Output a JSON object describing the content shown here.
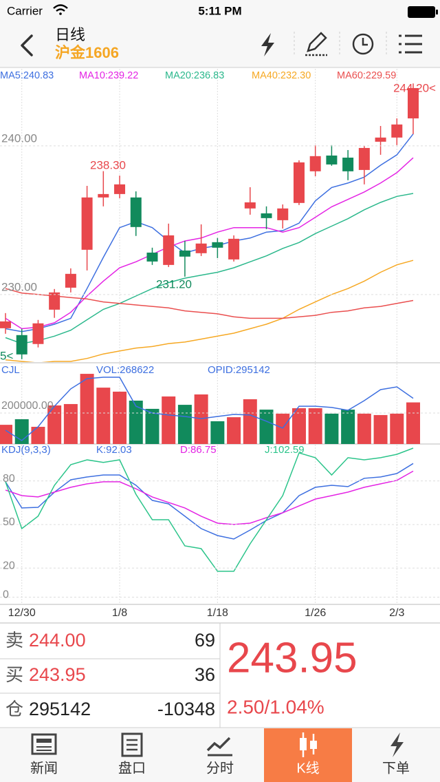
{
  "status_bar": {
    "carrier": "Carrier",
    "time": "5:11 PM"
  },
  "header": {
    "title": "日线",
    "subtitle": "沪金1606"
  },
  "chart_data": [
    {
      "type": "candlestick",
      "categories": [
        null,
        "12/30",
        null,
        null,
        null,
        null,
        null,
        "1/8",
        null,
        null,
        null,
        null,
        null,
        "1/18",
        null,
        null,
        null,
        null,
        null,
        "1/26",
        null,
        null,
        null,
        null,
        "2/3",
        null
      ],
      "open": [
        227.73,
        227.27,
        226.67,
        228.98,
        230.46,
        233.01,
        236.53,
        236.76,
        236.53,
        232.82,
        231.99,
        232.96,
        232.78,
        233.52,
        232.36,
        235.79,
        235.46,
        235.0,
        236.16,
        238.29,
        239.35,
        239.21,
        238.38,
        240.28,
        240.56,
        241.85
      ],
      "close": [
        228.19,
        225.97,
        228.06,
        230.14,
        231.39,
        236.53,
        236.76,
        237.41,
        234.54,
        232.22,
        233.98,
        232.55,
        233.43,
        233.15,
        233.75,
        236.2,
        235.14,
        235.79,
        238.89,
        239.31,
        238.75,
        238.29,
        239.86,
        240.56,
        241.44,
        243.89
      ],
      "high": [
        228.75,
        227.69,
        228.29,
        230.37,
        231.76,
        237.31,
        238.3,
        238.0,
        236.94,
        233.15,
        234.77,
        233.61,
        234.72,
        233.8,
        233.98,
        237.22,
        235.93,
        236.06,
        239.03,
        240.05,
        240.05,
        239.72,
        240.0,
        241.34,
        241.85,
        244.2
      ],
      "low": [
        227.36,
        225.65,
        226.44,
        228.43,
        230.14,
        231.62,
        235.93,
        236.48,
        233.94,
        231.99,
        231.85,
        231.2,
        232.59,
        232.45,
        232.22,
        235.37,
        234.4,
        234.44,
        236.02,
        237.96,
        238.66,
        237.69,
        237.41,
        239.4,
        240.05,
        240.79
      ],
      "up_color": "#e8474c",
      "down_color": "#118a5c",
      "ylim": [
        225.5,
        244.35
      ],
      "yticks": [
        {
          "value": 230,
          "label": "230.00"
        },
        {
          "value": 240,
          "label": "240.00"
        }
      ],
      "grid": true,
      "annotations": [
        "238.30",
        "231.20",
        "244.20<",
        "5<"
      ],
      "lines": [
        {
          "name": "MA5:240.83",
          "color": "#3d6fe0",
          "values": [
            227.7,
            227.5,
            227.7,
            228.0,
            228.4,
            230.4,
            232.5,
            234.5,
            234.9,
            234.5,
            233.6,
            232.8,
            233.1,
            233.3,
            233.6,
            233.8,
            234.2,
            234.3,
            234.8,
            236.3,
            237.2,
            237.5,
            237.9,
            238.7,
            239.4,
            240.8
          ]
        },
        {
          "name": "MA10:239.22",
          "color": "#e423e4",
          "values": [
            228.4,
            227.7,
            227.8,
            228.1,
            228.8,
            229.9,
            230.9,
            231.8,
            232.2,
            232.7,
            233.2,
            233.6,
            233.8,
            234.2,
            234.5,
            234.5,
            234.5,
            234.2,
            234.5,
            235.2,
            235.9,
            236.4,
            236.9,
            237.5,
            238.2,
            239.2
          ]
        },
        {
          "name": "MA20:236.83",
          "color": "#2bb88c",
          "values": [
            227.1,
            226.7,
            226.9,
            227.2,
            227.6,
            228.3,
            229.0,
            229.4,
            229.9,
            230.4,
            230.8,
            231.1,
            231.3,
            231.5,
            231.8,
            232.2,
            232.6,
            233.1,
            233.5,
            234.1,
            234.6,
            235.1,
            235.7,
            236.2,
            236.6,
            236.8
          ]
        },
        {
          "name": "MA40:232.30",
          "color": "#f6a823",
          "values": [
            225.6,
            225.5,
            225.4,
            225.5,
            225.5,
            225.7,
            226.0,
            226.2,
            226.4,
            226.5,
            226.7,
            226.8,
            227.0,
            227.2,
            227.4,
            227.7,
            228.0,
            228.4,
            229.0,
            229.5,
            230.0,
            230.4,
            230.9,
            231.5,
            232.0,
            232.3
          ]
        },
        {
          "name": "MA60:229.59",
          "color": "#ea4e4e",
          "values": [
            230.4,
            230.1,
            230.0,
            229.9,
            229.8,
            229.7,
            229.5,
            229.4,
            229.3,
            229.2,
            229.1,
            228.9,
            228.8,
            228.7,
            228.5,
            228.4,
            228.4,
            228.4,
            228.5,
            228.6,
            228.8,
            228.9,
            229.1,
            229.2,
            229.4,
            229.6
          ]
        }
      ]
    },
    {
      "type": "bar",
      "title": "CJL",
      "ylim": [
        0,
        520000
      ],
      "yticks": [
        {
          "value": 200000,
          "label": "200000.00"
        }
      ],
      "series": [
        {
          "name": "VOL:268622",
          "color": "#3d6fe0",
          "values": [
            124000,
            160000,
            111000,
            249000,
            258000,
            453000,
            364000,
            338000,
            280000,
            227000,
            307000,
            253000,
            320000,
            147000,
            173000,
            289000,
            222000,
            196000,
            231000,
            231000,
            196000,
            222000,
            196000,
            187000,
            196000,
            268622
          ]
        },
        {
          "name": "OPID:295142",
          "color": "#3d6fe0",
          "type": "line",
          "values": [
            89000,
            22000,
            111000,
            244000,
            356000,
            422000,
            431000,
            431000,
            244000,
            200000,
            187000,
            178000,
            164000,
            178000,
            191000,
            187000,
            147000,
            102000,
            244000,
            244000,
            236000,
            218000,
            280000,
            351000,
            369000,
            295142
          ]
        }
      ]
    },
    {
      "type": "line",
      "title": "KDJ(9,3,3)",
      "title_color": "#3d6fe0",
      "ylim": [
        -5,
        104
      ],
      "yticks": [
        0,
        20,
        50,
        80
      ],
      "series": [
        {
          "name": "K:92.03",
          "color": "#3d6fe0",
          "values": [
            79.4,
            61.4,
            61.8,
            72.3,
            80.8,
            82.7,
            84.1,
            84.1,
            77.0,
            66.6,
            64.2,
            55.7,
            47.2,
            42.4,
            40.0,
            46.2,
            52.8,
            58.1,
            69.9,
            75.6,
            77.0,
            76.1,
            81.8,
            82.7,
            85.1,
            92.03
          ]
        },
        {
          "name": "D:86.75",
          "color": "#e423e4",
          "values": [
            73.7,
            69.9,
            69.0,
            72.3,
            75.6,
            78.0,
            79.4,
            79.4,
            74.6,
            69.0,
            65.2,
            61.4,
            55.7,
            50.9,
            50.0,
            50.9,
            54.7,
            58.1,
            62.8,
            67.5,
            69.9,
            72.3,
            75.6,
            78.0,
            80.4,
            86.75
          ]
        },
        {
          "name": "J:102.59",
          "color": "#2bc48a",
          "values": [
            79.4,
            47.2,
            55.7,
            77.0,
            91.2,
            94.5,
            92.7,
            94.5,
            70.8,
            53.3,
            53.3,
            35.3,
            33.4,
            17.8,
            17.8,
            36.7,
            53.3,
            69.9,
            99.3,
            96.0,
            84.1,
            96.0,
            94.5,
            96.0,
            98.3,
            102.59
          ]
        }
      ]
    }
  ],
  "quote": {
    "rows": [
      {
        "label": "卖",
        "price": "244.00",
        "amount": "69"
      },
      {
        "label": "买",
        "price": "243.95",
        "amount": "36"
      },
      {
        "label": "仓",
        "price": "295142",
        "amount": "-10348"
      }
    ],
    "last_price": "243.95",
    "change": "2.50/1.04%"
  },
  "tabs": [
    "新闻",
    "盘口",
    "分时",
    "K线",
    "下单"
  ]
}
